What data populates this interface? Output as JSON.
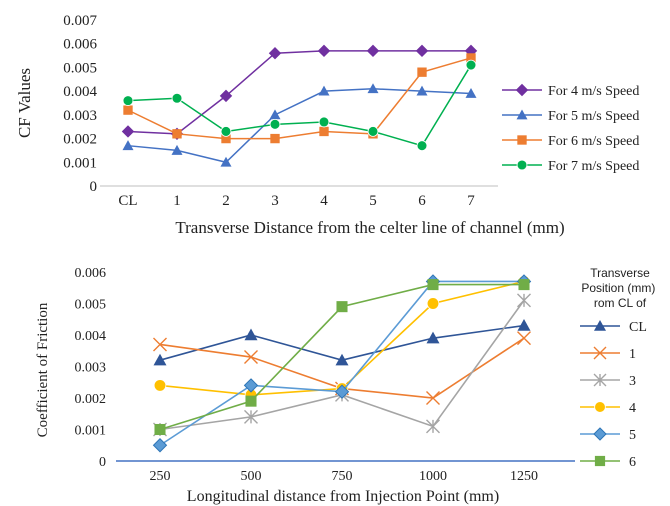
{
  "chart_data": [
    {
      "type": "line",
      "ylabel": "CF Values",
      "xlabel": "Transverse Distance from the celter line of channel (mm)",
      "categories": [
        "CL",
        "1",
        "2",
        "3",
        "4",
        "5",
        "6",
        "7"
      ],
      "y_ticks": [
        "0",
        "0.001",
        "0.002",
        "0.003",
        "0.004",
        "0.005",
        "0.006",
        "0.007"
      ],
      "ylim": [
        0,
        0.007
      ],
      "grid": false,
      "legend_position": "right",
      "series": [
        {
          "name": "For 4 m/s Speed",
          "color": "#7030a0",
          "marker": "diamond",
          "values": [
            0.0023,
            0.0022,
            0.0038,
            0.0056,
            0.0057,
            0.0057,
            0.0057,
            0.0057
          ]
        },
        {
          "name": "For 5 m/s Speed",
          "color": "#4472c4",
          "marker": "triangle",
          "values": [
            0.0017,
            0.0015,
            0.001,
            0.003,
            0.004,
            0.0041,
            0.004,
            0.0039
          ]
        },
        {
          "name": "For 6 m/s Speed",
          "color": "#ed7d31",
          "marker": "square",
          "values": [
            0.0032,
            0.0022,
            0.002,
            0.002,
            0.0023,
            0.0022,
            0.0048,
            0.0054
          ]
        },
        {
          "name": "For 7 m/s Speed",
          "color": "#00b050",
          "marker": "circle",
          "values": [
            0.0036,
            0.0037,
            0.0023,
            0.0026,
            0.0027,
            0.0023,
            0.0017,
            0.0051
          ]
        }
      ]
    },
    {
      "type": "line",
      "ylabel": "Coefficient of Friction",
      "xlabel": "Longitudinal distance from Injection Point (mm)",
      "categories": [
        "250",
        "500",
        "750",
        "1000",
        "1250"
      ],
      "y_ticks": [
        "0",
        "0.001",
        "0.002",
        "0.003",
        "0.004",
        "0.005",
        "0.006"
      ],
      "ylim": [
        0,
        0.006
      ],
      "grid": false,
      "legend_title": "Transverse Position (mm) from CL of",
      "legend_position": "right",
      "series": [
        {
          "name": "CL",
          "color": "#2f5597",
          "marker": "triangle",
          "values": [
            0.0032,
            0.004,
            0.0032,
            0.0039,
            0.0043
          ]
        },
        {
          "name": "1",
          "color": "#ed7d31",
          "marker": "x",
          "values": [
            0.0037,
            0.0033,
            0.0023,
            0.002,
            0.0039
          ]
        },
        {
          "name": "3",
          "color": "#a5a5a5",
          "marker": "star",
          "values": [
            0.001,
            0.0014,
            0.0021,
            0.0011,
            0.0051
          ]
        },
        {
          "name": "4",
          "color": "#ffc000",
          "marker": "circle",
          "values": [
            0.0024,
            0.0021,
            0.0023,
            0.005,
            0.0057
          ]
        },
        {
          "name": "5",
          "color": "#5b9bd5",
          "marker": "diamond",
          "values": [
            0.0005,
            0.0024,
            0.0022,
            0.0057,
            0.0057
          ]
        },
        {
          "name": "6",
          "color": "#70ad47",
          "marker": "square",
          "values": [
            0.001,
            0.0019,
            0.0049,
            0.0056,
            0.0056
          ]
        }
      ]
    }
  ]
}
